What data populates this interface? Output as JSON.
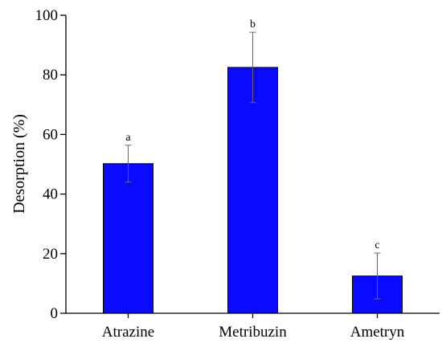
{
  "chart_data": {
    "type": "bar",
    "title": "",
    "xlabel": "",
    "ylabel": "Desorption (%)",
    "ylim": [
      0,
      100
    ],
    "yticks": [
      0,
      20,
      40,
      60,
      80,
      100
    ],
    "categories": [
      "Atrazine",
      "Metribuzin",
      "Ametryn"
    ],
    "values": [
      50.2,
      82.5,
      12.5
    ],
    "errors": [
      6.2,
      11.8,
      7.7
    ],
    "significance_labels": [
      "a",
      "b",
      "c"
    ],
    "bar_color": "#0a0aff",
    "grid": false,
    "legend": "none"
  }
}
